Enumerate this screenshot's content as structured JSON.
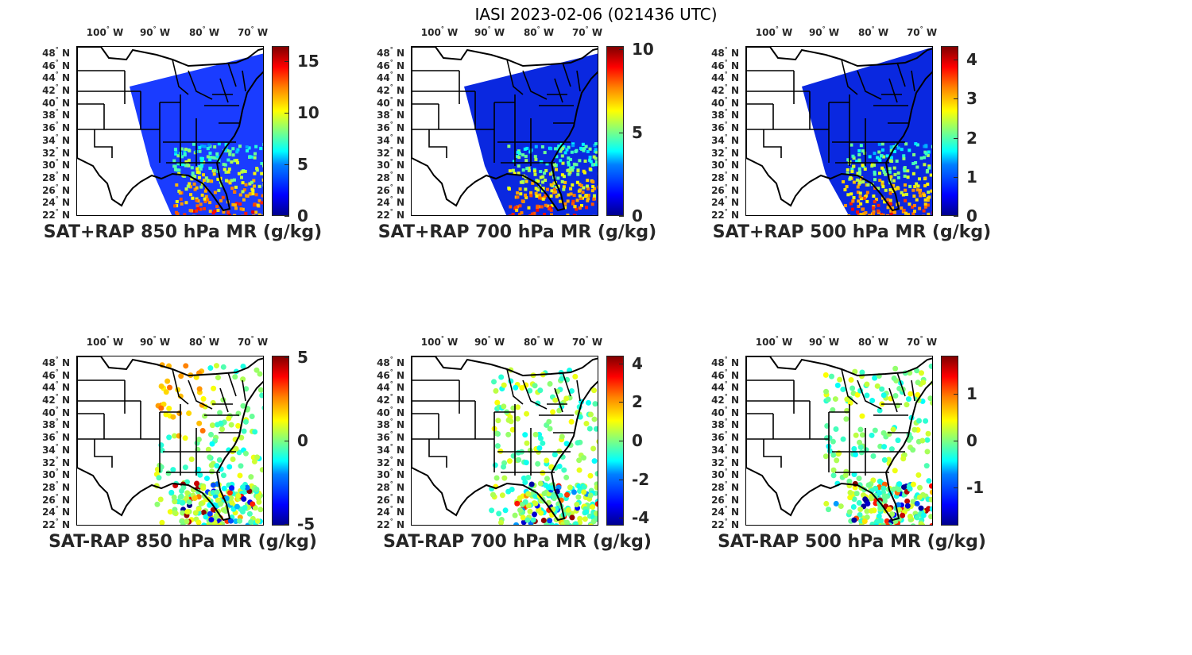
{
  "figure_title": "IASI 2023-02-06 (021436 UTC)",
  "lon_ticks": [
    "100",
    "90",
    "80",
    "70"
  ],
  "lon_suffix": "W",
  "lat_ticks": [
    "48",
    "46",
    "44",
    "42",
    "40",
    "38",
    "36",
    "34",
    "32",
    "30",
    "28",
    "26",
    "24",
    "22"
  ],
  "lat_suffix": "N",
  "degree_symbol": "°",
  "panels": [
    {
      "title": "SAT+RAP 850 hPa MR (g/kg)",
      "type": "sum",
      "cbar_ticks": [
        "15",
        "10",
        "5",
        "0"
      ],
      "cbar_range": [
        0,
        16.5
      ],
      "cbar_values": [
        15,
        10,
        5,
        0
      ]
    },
    {
      "title": "SAT+RAP 700 hPa MR (g/kg)",
      "type": "sum",
      "cbar_ticks": [
        "10",
        "5",
        "0"
      ],
      "cbar_range": [
        0,
        10.2
      ],
      "cbar_values": [
        10,
        5,
        0
      ]
    },
    {
      "title": "SAT+RAP 500 hPa MR (g/kg)",
      "type": "sum",
      "cbar_ticks": [
        "4",
        "3",
        "2",
        "1",
        "0"
      ],
      "cbar_range": [
        0,
        4.35
      ],
      "cbar_values": [
        4,
        3,
        2,
        1,
        0
      ]
    },
    {
      "title": "SAT-RAP 850 hPa MR (g/kg)",
      "type": "diff",
      "cbar_ticks": [
        "5",
        "0",
        "-5"
      ],
      "cbar_range": [
        -5.1,
        5.1
      ],
      "cbar_values": [
        5,
        0,
        -5
      ]
    },
    {
      "title": "SAT-RAP 700 hPa MR (g/kg)",
      "type": "diff",
      "cbar_ticks": [
        "4",
        "2",
        "0",
        "-2",
        "-4"
      ],
      "cbar_range": [
        -4.4,
        4.4
      ],
      "cbar_values": [
        4,
        2,
        0,
        -2,
        -4
      ]
    },
    {
      "title": "SAT-RAP 500 hPa MR (g/kg)",
      "type": "diff",
      "cbar_ticks": [
        "1",
        "0",
        "-1"
      ],
      "cbar_range": [
        -1.8,
        1.8
      ],
      "cbar_values": [
        1,
        0,
        -1
      ]
    }
  ]
}
